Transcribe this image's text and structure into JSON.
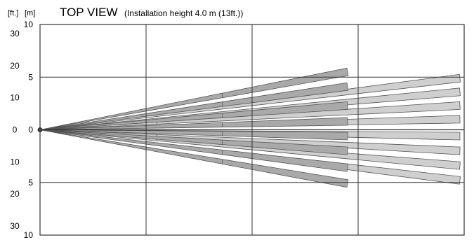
{
  "header": {
    "unit_ft": "[ft.]",
    "unit_m": "[m]",
    "title": "TOP VIEW",
    "subtitle": "(Installation height 4.0 m (13ft.))"
  },
  "axis": {
    "ft_ticks": [
      {
        "label": "30",
        "value": 9.144
      },
      {
        "label": "20",
        "value": 6.096
      },
      {
        "label": "10",
        "value": 3.048
      },
      {
        "label": "0",
        "value": 0
      },
      {
        "label": "10",
        "value": -3.048
      },
      {
        "label": "20",
        "value": -6.096
      },
      {
        "label": "30",
        "value": -9.144
      }
    ],
    "m_ticks": [
      {
        "label": "10",
        "value": 10
      },
      {
        "label": "5",
        "value": 5
      },
      {
        "label": "0",
        "value": 0
      },
      {
        "label": "5",
        "value": -5
      },
      {
        "label": "10",
        "value": -10
      }
    ]
  },
  "chart_data": {
    "type": "diagram",
    "view": "top",
    "ylim": [
      -10,
      10
    ],
    "xlim": [
      0,
      20
    ],
    "grid": true,
    "x_gridlines": [
      0,
      5,
      10,
      15,
      20
    ],
    "y_gridlines": [
      -10,
      -5,
      0,
      5,
      10
    ],
    "colors": {
      "long_zones": "#cfcfcf",
      "short_zones": "#a9a9a9",
      "grid": "#333333",
      "beam": "#555555"
    },
    "long_zones": {
      "x_start": 0,
      "x_end": 19.8,
      "inner_start": 5.5,
      "y_ends": [
        4.9,
        3.6,
        2.3,
        1.0,
        -0.6,
        -2.0,
        -3.4,
        -4.8
      ]
    },
    "short_zones": {
      "x_start": 0,
      "x_end": 14.5,
      "inner_start": 8.6,
      "y_ends": [
        5.5,
        4.1,
        2.3,
        0.8,
        -0.6,
        -2.0,
        -3.6,
        -5.1
      ]
    }
  }
}
